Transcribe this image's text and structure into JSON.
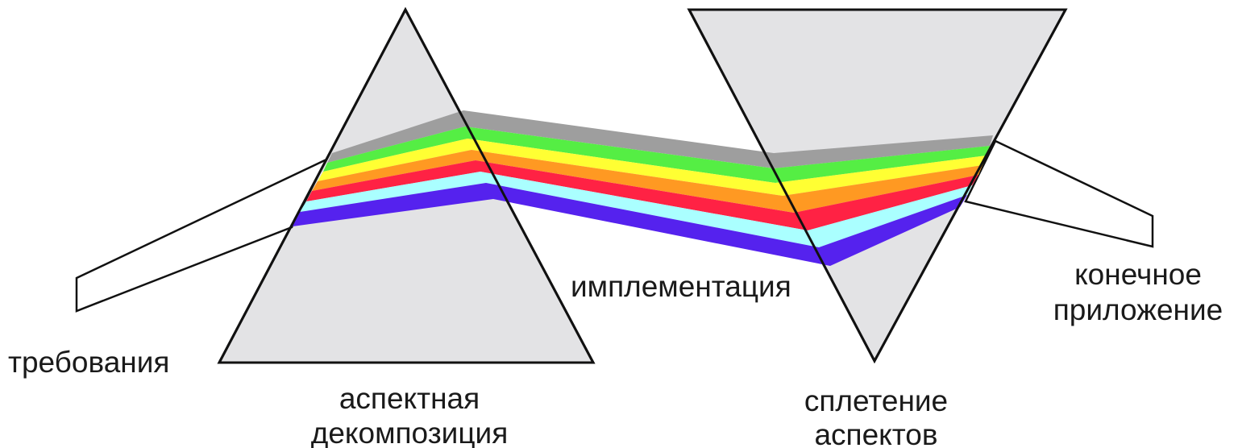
{
  "labels": {
    "requirements": "требования",
    "decomposition_line1": "аспектная",
    "decomposition_line2": "декомпозиция",
    "implementation": "имплементация",
    "weaving_line1": "сплетение",
    "weaving_line2": "аспектов",
    "final_line1": "конечное",
    "final_line2": "приложение"
  },
  "colors": {
    "prism_fill": "#e3e3e5",
    "outline": "#111111",
    "band_gray": "#9e9e9e",
    "band_green": "#55ee44",
    "band_yellow": "#ffff33",
    "band_orange": "#ff9922",
    "band_red": "#ff2244",
    "band_cyan": "#aaffff",
    "band_blue": "#5522ee"
  }
}
